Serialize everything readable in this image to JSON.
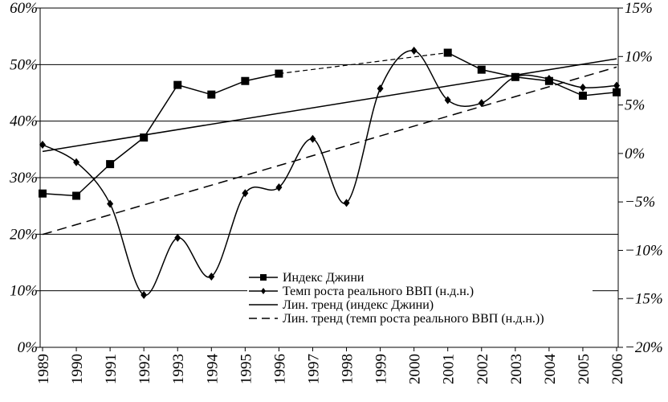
{
  "chart_data": {
    "type": "line",
    "x": [
      "1989",
      "1990",
      "1991",
      "1992",
      "1993",
      "1994",
      "1995",
      "1996",
      "1997",
      "1998",
      "1999",
      "2000",
      "2001",
      "2002",
      "2003",
      "2004",
      "2005",
      "2006"
    ],
    "series": [
      {
        "name": "Индекс Джини",
        "color": "#000",
        "marker": "square",
        "smooth": false,
        "values": [
          27.2,
          26.8,
          32.4,
          37.1,
          46.4,
          44.7,
          47.1,
          48.4,
          null,
          null,
          null,
          null,
          52.1,
          49.1,
          47.8,
          47.1,
          44.5,
          45.1
        ]
      },
      {
        "name": "Темп роста реального ВВП (н.д.н.)",
        "color": "#000",
        "marker": "diamond",
        "smooth": true,
        "axis": "y2",
        "values": [
          0.9,
          -0.9,
          -5.2,
          -14.6,
          -8.7,
          -12.7,
          -4.1,
          -3.5,
          1.5,
          -5.1,
          6.7,
          10.6,
          5.5,
          5.2,
          7.9,
          7.7,
          6.8,
          7.0
        ]
      }
    ],
    "trendlines": [
      {
        "name": "Лин. тренд (индекс Джини)",
        "series": 0,
        "dash": false
      },
      {
        "name": "Лин. тренд (темп роста реального ВВП (н.д.н.))",
        "series": 1,
        "dash": true
      }
    ],
    "ylim": [
      0,
      60
    ],
    "yticks": [
      {
        "value": 0,
        "label": "0%"
      },
      {
        "value": 10,
        "label": "10%"
      },
      {
        "value": 20,
        "label": "20%"
      },
      {
        "value": 30,
        "label": "30%"
      },
      {
        "value": 40,
        "label": "40%"
      },
      {
        "value": 50,
        "label": "50%"
      },
      {
        "value": 60,
        "label": "60%"
      }
    ],
    "y2lim": [
      -20,
      15
    ],
    "y2ticks": [
      {
        "value": -20,
        "label": "−20%"
      },
      {
        "value": -15,
        "label": "−15%"
      },
      {
        "value": -10,
        "label": "−10%"
      },
      {
        "value": -5,
        "label": "−5%"
      },
      {
        "value": 0,
        "label": "0%"
      },
      {
        "value": 5,
        "label": "5%"
      },
      {
        "value": 10,
        "label": "10%"
      },
      {
        "value": 15,
        "label": "15%"
      }
    ],
    "grid": true,
    "legend": "lower right"
  }
}
